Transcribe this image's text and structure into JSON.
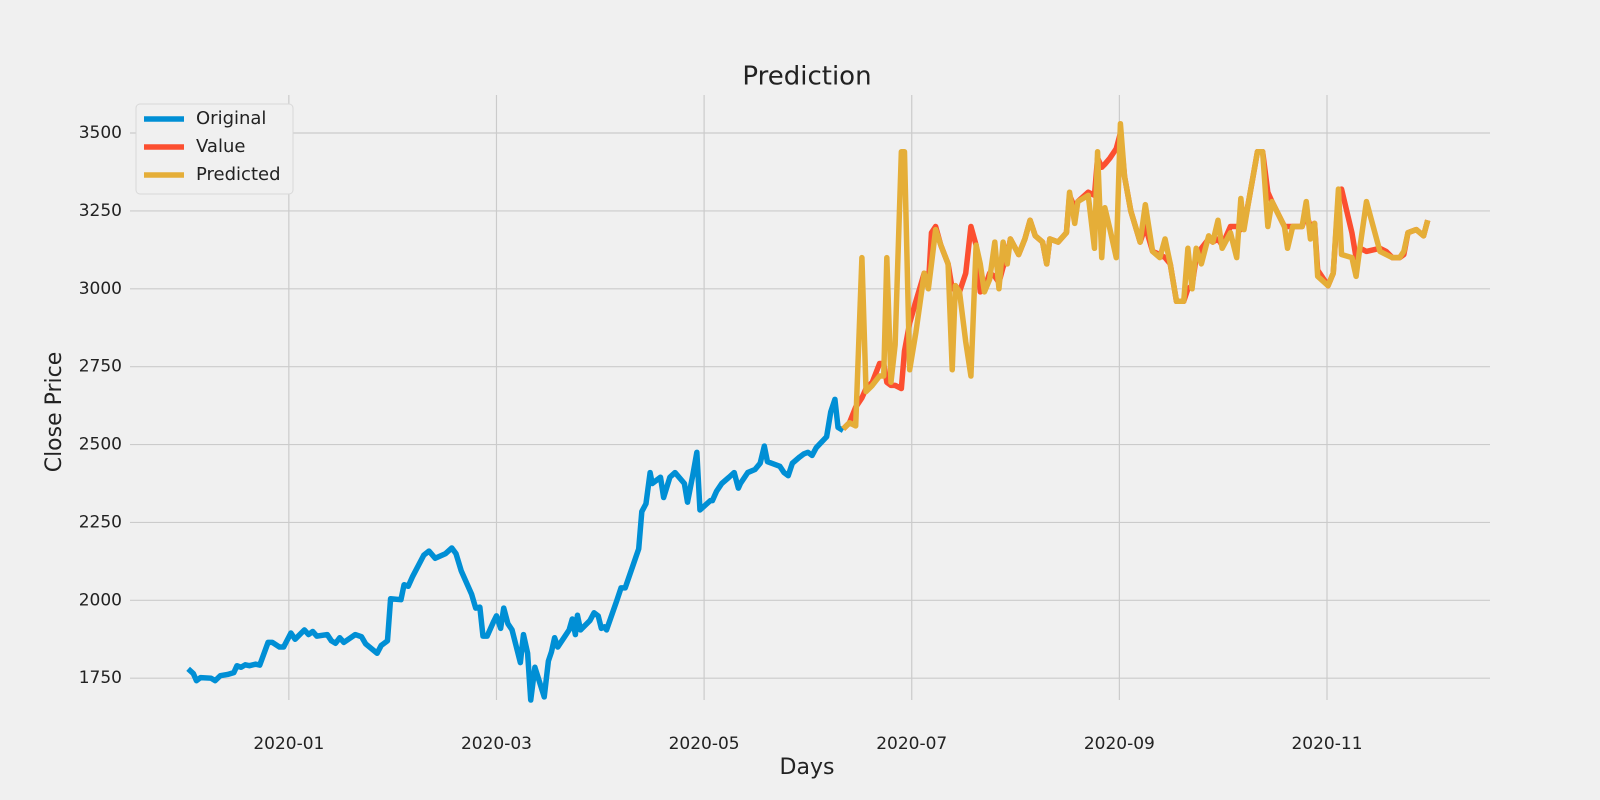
{
  "chart_data": {
    "type": "line",
    "title": "Prediction",
    "x_label": "Days",
    "y_label": "Close Price",
    "xlim": [
      -0.53,
      12.57
    ],
    "ylim": [
      1680,
      3590
    ],
    "xticks": [
      {
        "value": 1,
        "label": "2020-01"
      },
      {
        "value": 3,
        "label": "2020-03"
      },
      {
        "value": 5,
        "label": "2020-05"
      },
      {
        "value": 7,
        "label": "2020-07"
      },
      {
        "value": 9,
        "label": "2020-09"
      },
      {
        "value": 11,
        "label": "2020-11"
      }
    ],
    "yticks": [
      1750,
      2000,
      2250,
      2500,
      2750,
      3000,
      3250,
      3500
    ],
    "grid": true,
    "legend": "upper left",
    "series": [
      {
        "name": "Original",
        "color": "#008fd5",
        "x": [
          0.03,
          0.08,
          0.11,
          0.15,
          0.25,
          0.29,
          0.34,
          0.41,
          0.47,
          0.5,
          0.54,
          0.58,
          0.62,
          0.68,
          0.72,
          0.8,
          0.84,
          0.91,
          0.95,
          1.02,
          1.06,
          1.15,
          1.19,
          1.23,
          1.27,
          1.37,
          1.41,
          1.45,
          1.49,
          1.53,
          1.64,
          1.7,
          1.74,
          1.85,
          1.89,
          1.95,
          1.98,
          2.08,
          2.11,
          2.15,
          2.19,
          2.3,
          2.35,
          2.41,
          2.51,
          2.57,
          2.61,
          2.66,
          2.76,
          2.8,
          2.84,
          2.87,
          2.91,
          2.97,
          3.0,
          3.04,
          3.07,
          3.11,
          3.15,
          3.23,
          3.26,
          3.3,
          3.33,
          3.37,
          3.46,
          3.5,
          3.53,
          3.56,
          3.59,
          3.7,
          3.73,
          3.76,
          3.78,
          3.81,
          3.9,
          3.94,
          3.98,
          4.01,
          4.04,
          4.06,
          4.16,
          4.2,
          4.24,
          4.37,
          4.4,
          4.44,
          4.48,
          4.5,
          4.58,
          4.61,
          4.67,
          4.72,
          4.81,
          4.84,
          4.89,
          4.93,
          4.96,
          5.06,
          5.08,
          5.12,
          5.17,
          5.24,
          5.29,
          5.33,
          5.35,
          5.42,
          5.49,
          5.54,
          5.58,
          5.61,
          5.73,
          5.77,
          5.81,
          5.85,
          5.92,
          5.96,
          6.0,
          6.04,
          6.08,
          6.18,
          6.22,
          6.26,
          6.29,
          6.34
        ],
        "values": [
          1780,
          1765,
          1742,
          1752,
          1750,
          1742,
          1758,
          1762,
          1768,
          1790,
          1785,
          1793,
          1790,
          1795,
          1792,
          1865,
          1865,
          1850,
          1850,
          1895,
          1875,
          1905,
          1890,
          1900,
          1885,
          1890,
          1870,
          1862,
          1880,
          1865,
          1890,
          1883,
          1860,
          1830,
          1855,
          1870,
          2005,
          2002,
          2050,
          2045,
          2075,
          2145,
          2158,
          2135,
          2150,
          2168,
          2150,
          2095,
          2020,
          1975,
          1978,
          1885,
          1885,
          1930,
          1950,
          1910,
          1975,
          1925,
          1905,
          1800,
          1890,
          1830,
          1680,
          1785,
          1690,
          1805,
          1835,
          1880,
          1850,
          1905,
          1940,
          1890,
          1952,
          1905,
          1935,
          1960,
          1950,
          1910,
          1915,
          1905,
          2000,
          2040,
          2040,
          2165,
          2285,
          2310,
          2410,
          2375,
          2395,
          2330,
          2395,
          2410,
          2375,
          2315,
          2400,
          2475,
          2290,
          2320,
          2320,
          2350,
          2375,
          2395,
          2410,
          2360,
          2375,
          2410,
          2420,
          2440,
          2495,
          2445,
          2430,
          2410,
          2400,
          2440,
          2460,
          2470,
          2475,
          2465,
          2490,
          2525,
          2605,
          2645,
          2555,
          2545
        ]
      },
      {
        "name": "Value",
        "color": "#fc4f30",
        "x": [
          6.34,
          6.4,
          6.46,
          6.52,
          6.56,
          6.62,
          6.69,
          6.73,
          6.76,
          6.8,
          6.84,
          6.9,
          6.93,
          6.98,
          7.04,
          7.12,
          7.16,
          7.19,
          7.23,
          7.28,
          7.35,
          7.39,
          7.42,
          7.46,
          7.52,
          7.57,
          7.62,
          7.66,
          7.7,
          7.75,
          7.8,
          7.84,
          7.88,
          7.92,
          7.95,
          8.03,
          8.09,
          8.14,
          8.19,
          8.26,
          8.3,
          8.33,
          8.41,
          8.49,
          8.52,
          8.57,
          8.6,
          8.7,
          8.76,
          8.79,
          8.83,
          8.86,
          8.91,
          8.97,
          9.01,
          9.05,
          9.11,
          9.2,
          9.25,
          9.32,
          9.39,
          9.44,
          9.49,
          9.55,
          9.62,
          9.66,
          9.7,
          9.74,
          9.79,
          9.86,
          9.9,
          9.95,
          9.99,
          10.07,
          10.13,
          10.17,
          10.2,
          10.25,
          10.33,
          10.38,
          10.43,
          10.47,
          10.59,
          10.62,
          10.67,
          10.76,
          10.8,
          10.84,
          10.88,
          10.91,
          11.01,
          11.06,
          11.11,
          11.14,
          11.24,
          11.28,
          11.32,
          11.38,
          11.51,
          11.57,
          11.63,
          11.7,
          11.74,
          11.78,
          11.86,
          11.93,
          11.97
        ],
        "values": [
          2550,
          2570,
          2620,
          2650,
          2680,
          2700,
          2760,
          2760,
          2700,
          2690,
          2690,
          2680,
          2800,
          2890,
          2960,
          3050,
          3010,
          3180,
          3200,
          3140,
          3080,
          3000,
          3010,
          2990,
          3050,
          3200,
          3140,
          2990,
          3000,
          3050,
          3040,
          3020,
          3070,
          3100,
          3160,
          3110,
          3160,
          3220,
          3170,
          3150,
          3080,
          3160,
          3150,
          3180,
          3300,
          3260,
          3280,
          3310,
          3300,
          3420,
          3390,
          3400,
          3420,
          3450,
          3500,
          3360,
          3250,
          3150,
          3200,
          3120,
          3110,
          3100,
          3080,
          2960,
          2960,
          3000,
          3010,
          3100,
          3130,
          3160,
          3150,
          3160,
          3140,
          3200,
          3200,
          3190,
          3200,
          3290,
          3440,
          3440,
          3310,
          3280,
          3200,
          3200,
          3200,
          3200,
          3240,
          3200,
          3210,
          3060,
          3010,
          3050,
          3300,
          3320,
          3180,
          3100,
          3130,
          3120,
          3130,
          3120,
          3100,
          3100,
          3110,
          3180,
          3190,
          3170,
          3220
        ]
      },
      {
        "name": "Predicted",
        "color": "#e5ae38",
        "x": [
          6.34,
          6.4,
          6.46,
          6.52,
          6.56,
          6.62,
          6.69,
          6.73,
          6.76,
          6.8,
          6.84,
          6.9,
          6.93,
          6.98,
          7.04,
          7.12,
          7.16,
          7.19,
          7.23,
          7.28,
          7.35,
          7.39,
          7.42,
          7.46,
          7.52,
          7.57,
          7.62,
          7.66,
          7.7,
          7.75,
          7.8,
          7.84,
          7.88,
          7.92,
          7.95,
          8.03,
          8.09,
          8.14,
          8.19,
          8.26,
          8.3,
          8.33,
          8.41,
          8.49,
          8.52,
          8.57,
          8.6,
          8.7,
          8.76,
          8.79,
          8.83,
          8.86,
          8.91,
          8.97,
          9.01,
          9.05,
          9.11,
          9.2,
          9.25,
          9.32,
          9.39,
          9.44,
          9.49,
          9.55,
          9.62,
          9.66,
          9.7,
          9.74,
          9.79,
          9.86,
          9.9,
          9.95,
          9.99,
          10.07,
          10.13,
          10.17,
          10.2,
          10.25,
          10.33,
          10.38,
          10.43,
          10.47,
          10.59,
          10.62,
          10.67,
          10.76,
          10.8,
          10.84,
          10.88,
          10.91,
          11.01,
          11.06,
          11.11,
          11.14,
          11.24,
          11.28,
          11.32,
          11.38,
          11.51,
          11.57,
          11.63,
          11.7,
          11.74,
          11.78,
          11.86,
          11.93,
          11.97
        ],
        "values": [
          2550,
          2570,
          2560,
          3100,
          2670,
          2690,
          2720,
          2720,
          3100,
          2700,
          2820,
          3440,
          3440,
          2740,
          2860,
          3050,
          3000,
          3080,
          3190,
          3140,
          3080,
          2740,
          3010,
          2990,
          2830,
          2720,
          3140,
          3080,
          2990,
          3030,
          3150,
          3000,
          3150,
          3080,
          3160,
          3110,
          3160,
          3220,
          3170,
          3150,
          3080,
          3160,
          3150,
          3180,
          3310,
          3210,
          3280,
          3300,
          3130,
          3440,
          3100,
          3260,
          3190,
          3100,
          3530,
          3360,
          3250,
          3150,
          3270,
          3120,
          3100,
          3160,
          3080,
          2960,
          2960,
          3130,
          3000,
          3130,
          3080,
          3170,
          3150,
          3220,
          3130,
          3180,
          3100,
          3290,
          3190,
          3290,
          3440,
          3440,
          3200,
          3280,
          3200,
          3130,
          3200,
          3200,
          3280,
          3160,
          3210,
          3040,
          3010,
          3050,
          3320,
          3110,
          3100,
          3040,
          3140,
          3280,
          3120,
          3110,
          3100,
          3100,
          3120,
          3180,
          3190,
          3170,
          3220
        ]
      }
    ]
  }
}
